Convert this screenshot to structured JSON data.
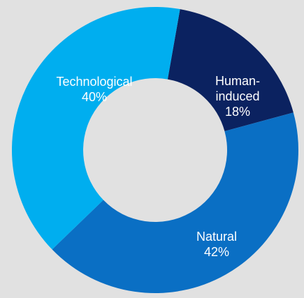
{
  "chart_data": {
    "type": "donut",
    "categories": [
      "Human-induced",
      "Natural",
      "Technological"
    ],
    "values": [
      18,
      42,
      40
    ],
    "value_labels": [
      "18%",
      "42%",
      "40%"
    ],
    "colors": [
      "#0b2260",
      "#0a6fc4",
      "#00aeef"
    ]
  }
}
